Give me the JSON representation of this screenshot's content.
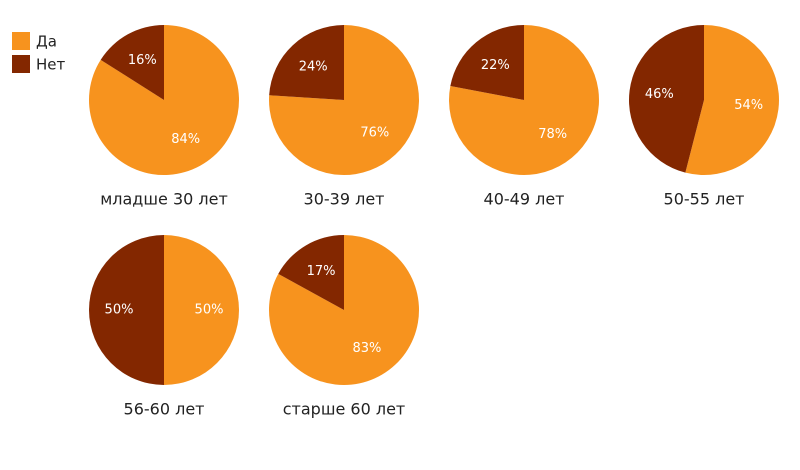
{
  "legend": {
    "categories": [
      "Да",
      "Нет"
    ],
    "colors": [
      "#f7931e",
      "#832700"
    ],
    "position": "top-left"
  },
  "chart_data": [
    {
      "type": "pie",
      "title": "младше 30 лет",
      "values": [
        84,
        16
      ],
      "value_labels": [
        "84%",
        "16%"
      ]
    },
    {
      "type": "pie",
      "title": "30-39 лет",
      "values": [
        76,
        24
      ],
      "value_labels": [
        "76%",
        "24%"
      ]
    },
    {
      "type": "pie",
      "title": "40-49 лет",
      "values": [
        78,
        22
      ],
      "value_labels": [
        "78%",
        "22%"
      ]
    },
    {
      "type": "pie",
      "title": "50-55 лет",
      "values": [
        54,
        46
      ],
      "value_labels": [
        "54%",
        "46%"
      ]
    },
    {
      "type": "pie",
      "title": "56-60 лет",
      "values": [
        50,
        50
      ],
      "value_labels": [
        "50%",
        "50%"
      ]
    },
    {
      "type": "pie",
      "title": "старше 60 лет",
      "values": [
        83,
        17
      ],
      "value_labels": [
        "83%",
        "17%"
      ]
    }
  ]
}
